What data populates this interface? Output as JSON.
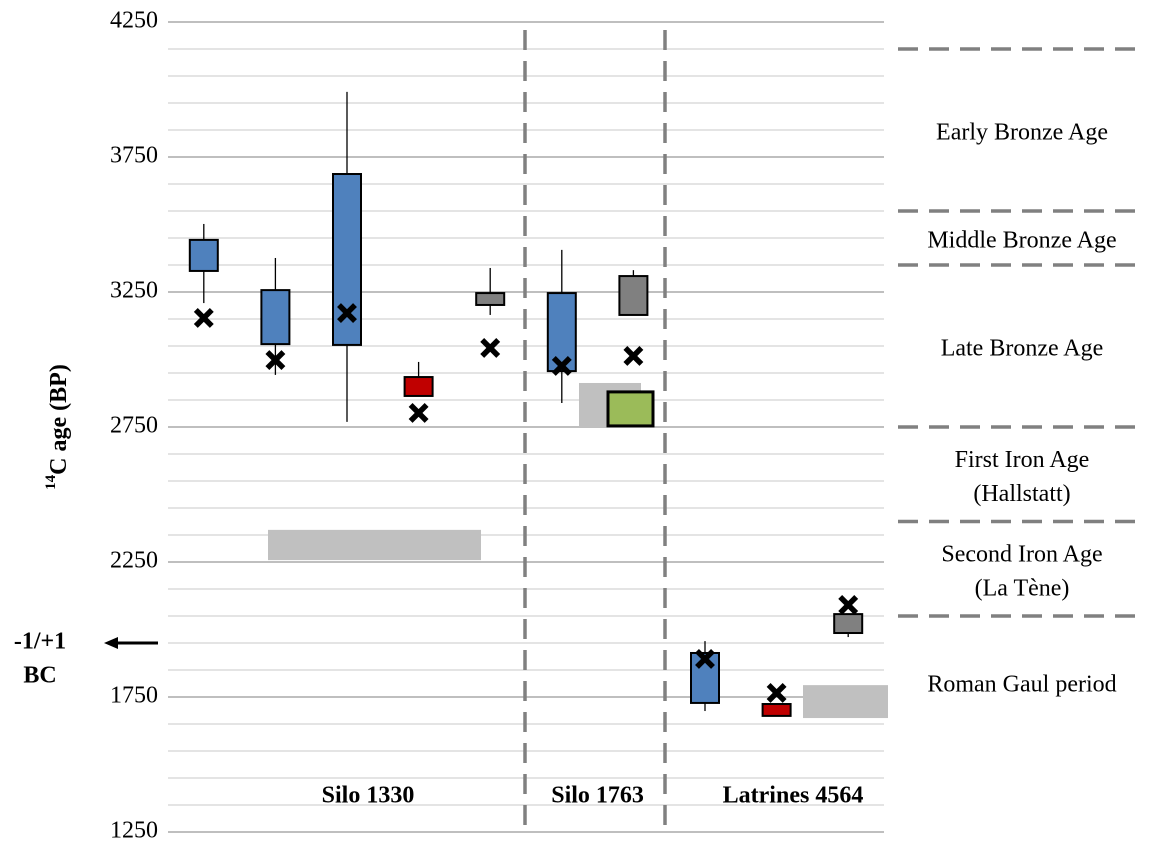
{
  "chart_data": {
    "type": "box",
    "y_label_sup": "14",
    "y_label": "C age (BP)",
    "ylim": [
      1250,
      4250
    ],
    "yticks": [
      1250,
      1750,
      2250,
      2750,
      3250,
      3750,
      4250
    ],
    "minor_yticks": [
      1350,
      1450,
      1550,
      1650,
      1850,
      1950,
      2050,
      2150,
      2350,
      2450,
      2550,
      2650,
      2850,
      2950,
      3050,
      3150,
      3350,
      3450,
      3550,
      3650,
      3850,
      3950,
      4050,
      4150
    ],
    "grid": true,
    "groups": [
      {
        "name": "Silo 1330",
        "boxes": [
          {
            "color": "#4f81bd",
            "low": 3328,
            "high": 3443,
            "whisker_low": 3209,
            "whisker_high": 3502,
            "marker": 3154
          },
          {
            "color": "#4f81bd",
            "low": 3057,
            "high": 3257,
            "whisker_low": 2943,
            "whisker_high": 3376,
            "marker": 2998
          },
          {
            "color": "#4f81bd",
            "low": 3054,
            "high": 3687,
            "whisker_low": 2769,
            "whisker_high": 3991,
            "marker": 3172
          },
          {
            "color": "#c00000",
            "low": 2865,
            "high": 2935,
            "whisker_low": 2865,
            "whisker_high": 2991,
            "marker": 2802
          },
          {
            "color": "#808080",
            "low": 3202,
            "high": 3246,
            "whisker_low": 3165,
            "whisker_high": 3339,
            "marker": 3043
          }
        ],
        "ranges": [
          {
            "low": 2257,
            "high": 2369,
            "color": "#c0c0c0"
          }
        ]
      },
      {
        "name": "Silo 1763",
        "boxes": [
          {
            "color": "#4f81bd",
            "low": 2957,
            "high": 3246,
            "whisker_low": 2839,
            "whisker_high": 3406,
            "marker": 2976
          },
          {
            "color": "#808080",
            "low": 3165,
            "high": 3309,
            "whisker_low": 3165,
            "whisker_high": 3331,
            "marker": 3013
          }
        ],
        "ranges": [
          {
            "low": 2750,
            "high": 2913,
            "color": "#c0c0c0"
          },
          {
            "low": 2754,
            "high": 2880,
            "color": "#9bbb59",
            "edgecolor": "#000000"
          }
        ]
      },
      {
        "name": "Latrines 4564",
        "boxes": [
          {
            "color": "#4f81bd",
            "low": 1728,
            "high": 1913,
            "whisker_low": 1698,
            "whisker_high": 1957,
            "marker": 1891
          },
          {
            "color": "#c00000",
            "low": 1680,
            "high": 1724,
            "whisker_low": 1680,
            "whisker_high": 1724,
            "marker": 1765
          },
          {
            "color": "#808080",
            "low": 1987,
            "high": 2057,
            "whisker_low": 1972,
            "whisker_high": 2057,
            "marker": 2091
          }
        ],
        "ranges": [
          {
            "low": 1672,
            "high": 1794,
            "color": "#c0c0c0"
          }
        ]
      }
    ],
    "periods": {
      "boundaries": [
        4150,
        3550,
        3350,
        2750,
        2400,
        2050
      ],
      "labels": [
        [
          "Early Bronze Age"
        ],
        [
          "Middle Bronze Age"
        ],
        [
          "Late Bronze Age"
        ],
        [
          "First Iron Age",
          "(Hallstatt)"
        ],
        [
          "Second Iron Age",
          "(La Tène)"
        ],
        [
          "Roman Gaul period"
        ]
      ]
    },
    "annotation": {
      "lines": [
        "-1/+1",
        "BC"
      ],
      "value": 1950
    }
  }
}
